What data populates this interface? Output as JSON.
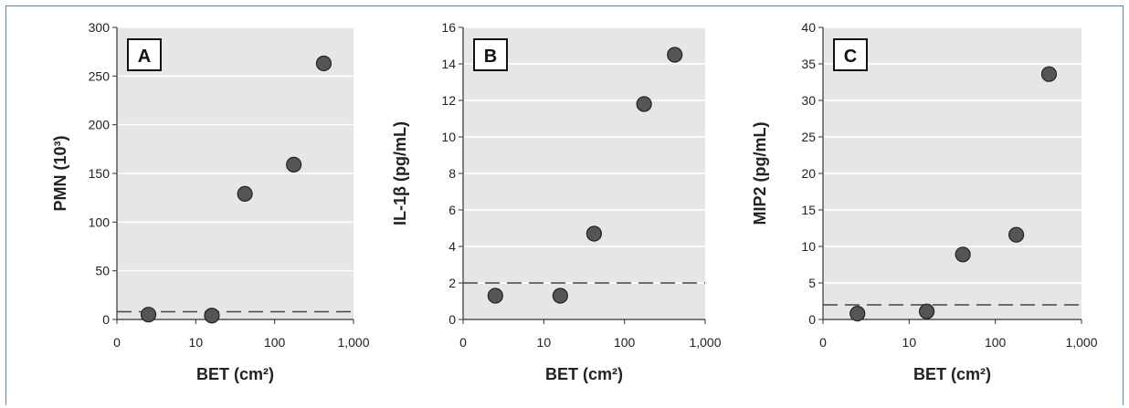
{
  "colors": {
    "plot_background": "#e6e6e6",
    "gridline": "#ffffff",
    "point_fill": "#555555",
    "point_stroke": "#222222",
    "reference_line": "#444444",
    "frame_border": "#5a87a8"
  },
  "chart_data": [
    {
      "type": "scatter",
      "panel_label": "A",
      "xlabel": "BET (cm²)",
      "ylabel": "PMN (10³)",
      "x_scale": "log with zero",
      "x_tick_labels": [
        "0",
        "10",
        "100",
        "1,000"
      ],
      "y_tick_labels": [
        "0",
        "50",
        "100",
        "150",
        "200",
        "250",
        "300"
      ],
      "ylim": [
        0,
        300
      ],
      "grid": true,
      "x": [
        4,
        16,
        42,
        175,
        420
      ],
      "y": [
        5,
        4,
        129,
        159,
        263
      ],
      "reference_line_y": 8
    },
    {
      "type": "scatter",
      "panel_label": "B",
      "xlabel": "BET (cm²)",
      "ylabel": "IL-1β (pg/mL)",
      "x_scale": "log with zero",
      "x_tick_labels": [
        "0",
        "10",
        "100",
        "1,000"
      ],
      "y_tick_labels": [
        "0",
        "2",
        "4",
        "6",
        "8",
        "10",
        "12",
        "14",
        "16"
      ],
      "ylim": [
        0,
        16
      ],
      "grid": true,
      "x": [
        4,
        16,
        42,
        175,
        420
      ],
      "y": [
        1.3,
        1.3,
        4.7,
        11.8,
        14.5
      ],
      "reference_line_y": 2
    },
    {
      "type": "scatter",
      "panel_label": "C",
      "xlabel": "BET (cm²)",
      "ylabel": "MIP2 (pg/mL)",
      "x_scale": "log with zero",
      "x_tick_labels": [
        "0",
        "10",
        "100",
        "1,000"
      ],
      "y_tick_labels": [
        "0",
        "5",
        "10",
        "15",
        "20",
        "25",
        "30",
        "35",
        "40"
      ],
      "ylim": [
        0,
        40
      ],
      "grid": true,
      "x": [
        4,
        16,
        42,
        175,
        420
      ],
      "y": [
        0.8,
        1.1,
        8.9,
        11.6,
        33.6
      ],
      "reference_line_y": 2
    }
  ]
}
